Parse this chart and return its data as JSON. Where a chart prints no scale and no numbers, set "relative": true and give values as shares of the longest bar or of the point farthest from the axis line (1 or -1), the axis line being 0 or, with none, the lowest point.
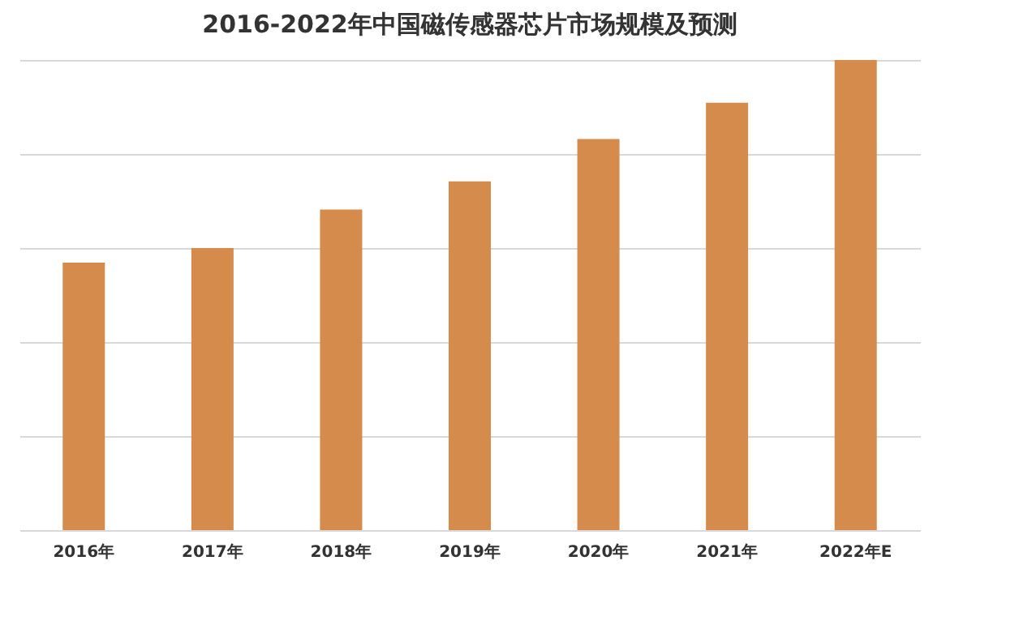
{
  "chart_data": {
    "type": "bar",
    "title": "2016-2022年中国磁传感器芯片市场规模及预测",
    "categories": [
      "2016年",
      "2017年",
      "2018年",
      "2019年",
      "2020年",
      "2021年",
      "2022年E"
    ],
    "values": [
      0.569,
      0.6,
      0.682,
      0.742,
      0.832,
      0.909,
      1
    ],
    "color": "#d48b4c",
    "relative": true,
    "grid": true
  }
}
